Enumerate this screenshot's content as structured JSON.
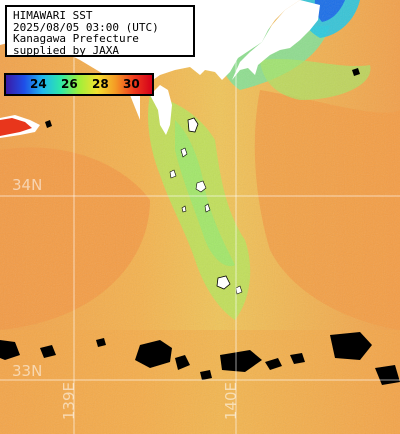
{
  "info": {
    "line1": "HIMAWARI SST",
    "line2": "2025/08/05 03:00 (UTC)",
    "line3": "Kanagawa Prefecture",
    "line4": "supplied by JAXA"
  },
  "legend": {
    "ticks": [
      "24",
      "26",
      "28",
      "30"
    ],
    "colors": [
      "#3a1aa6",
      "#1f4fe8",
      "#1fb7ee",
      "#2ee8a8",
      "#9fef3a",
      "#f3e130",
      "#f59a25",
      "#ef3b1d",
      "#d4001a"
    ]
  },
  "grid": {
    "lat_labels": [
      "34N",
      "33N"
    ],
    "lon_labels": [
      "139E",
      "140E"
    ]
  }
}
